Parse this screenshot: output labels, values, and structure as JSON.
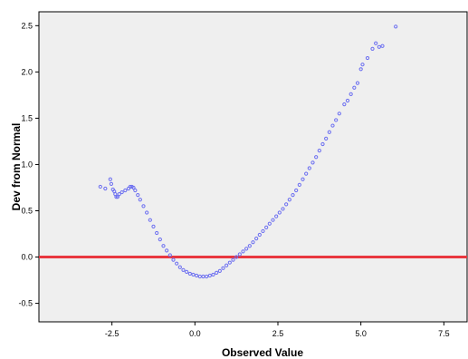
{
  "chart_data": {
    "type": "scatter",
    "title": "",
    "xlabel": "Observed Value",
    "ylabel": "Dev from Normal",
    "xlim": [
      -4.7,
      8.2
    ],
    "ylim": [
      -0.7,
      2.65
    ],
    "x_ticks": [
      "-2.5",
      "0.0",
      "2.5",
      "5.0",
      "7.5"
    ],
    "y_ticks": [
      "-0.5",
      "0.0",
      "0.5",
      "1.0",
      "1.5",
      "2.0",
      "2.5"
    ],
    "grid": false,
    "legend": "none",
    "reference_line": {
      "y": 0,
      "color": "#e8373f"
    },
    "point_color": "#6b6ef0",
    "plot_background": "#efefef",
    "series": [
      {
        "values": [
          [
            -2.85,
            0.76
          ],
          [
            -2.7,
            0.74
          ],
          [
            -2.55,
            0.84
          ],
          [
            -2.52,
            0.79
          ],
          [
            -2.47,
            0.73
          ],
          [
            -2.43,
            0.71
          ],
          [
            -2.4,
            0.68
          ],
          [
            -2.37,
            0.65
          ],
          [
            -2.33,
            0.65
          ],
          [
            -2.28,
            0.68
          ],
          [
            -2.2,
            0.7
          ],
          [
            -2.1,
            0.72
          ],
          [
            -2.0,
            0.74
          ],
          [
            -1.95,
            0.76
          ],
          [
            -1.9,
            0.76
          ],
          [
            -1.85,
            0.75
          ],
          [
            -1.8,
            0.72
          ],
          [
            -1.72,
            0.67
          ],
          [
            -1.65,
            0.62
          ],
          [
            -1.55,
            0.55
          ],
          [
            -1.45,
            0.48
          ],
          [
            -1.35,
            0.4
          ],
          [
            -1.25,
            0.33
          ],
          [
            -1.15,
            0.26
          ],
          [
            -1.05,
            0.19
          ],
          [
            -0.95,
            0.12
          ],
          [
            -0.85,
            0.07
          ],
          [
            -0.75,
            0.02
          ],
          [
            -0.65,
            -0.03
          ],
          [
            -0.55,
            -0.07
          ],
          [
            -0.45,
            -0.11
          ],
          [
            -0.35,
            -0.14
          ],
          [
            -0.25,
            -0.16
          ],
          [
            -0.15,
            -0.18
          ],
          [
            -0.05,
            -0.19
          ],
          [
            0.05,
            -0.2
          ],
          [
            0.15,
            -0.21
          ],
          [
            0.25,
            -0.21
          ],
          [
            0.35,
            -0.21
          ],
          [
            0.45,
            -0.2
          ],
          [
            0.55,
            -0.19
          ],
          [
            0.65,
            -0.17
          ],
          [
            0.75,
            -0.15
          ],
          [
            0.85,
            -0.12
          ],
          [
            0.95,
            -0.09
          ],
          [
            1.05,
            -0.06
          ],
          [
            1.15,
            -0.03
          ],
          [
            1.25,
            0.0
          ],
          [
            1.35,
            0.03
          ],
          [
            1.45,
            0.06
          ],
          [
            1.55,
            0.09
          ],
          [
            1.65,
            0.12
          ],
          [
            1.75,
            0.16
          ],
          [
            1.85,
            0.2
          ],
          [
            1.95,
            0.24
          ],
          [
            2.05,
            0.28
          ],
          [
            2.15,
            0.32
          ],
          [
            2.25,
            0.36
          ],
          [
            2.35,
            0.4
          ],
          [
            2.45,
            0.44
          ],
          [
            2.55,
            0.48
          ],
          [
            2.65,
            0.52
          ],
          [
            2.75,
            0.57
          ],
          [
            2.85,
            0.62
          ],
          [
            2.95,
            0.67
          ],
          [
            3.05,
            0.72
          ],
          [
            3.15,
            0.78
          ],
          [
            3.25,
            0.84
          ],
          [
            3.35,
            0.9
          ],
          [
            3.45,
            0.96
          ],
          [
            3.55,
            1.02
          ],
          [
            3.65,
            1.08
          ],
          [
            3.75,
            1.15
          ],
          [
            3.85,
            1.22
          ],
          [
            3.95,
            1.28
          ],
          [
            4.05,
            1.35
          ],
          [
            4.15,
            1.42
          ],
          [
            4.25,
            1.48
          ],
          [
            4.35,
            1.55
          ],
          [
            4.5,
            1.65
          ],
          [
            4.6,
            1.69
          ],
          [
            4.7,
            1.76
          ],
          [
            4.8,
            1.83
          ],
          [
            4.9,
            1.88
          ],
          [
            5.0,
            2.03
          ],
          [
            5.05,
            2.08
          ],
          [
            5.2,
            2.15
          ],
          [
            5.35,
            2.25
          ],
          [
            5.45,
            2.31
          ],
          [
            5.55,
            2.27
          ],
          [
            5.65,
            2.28
          ],
          [
            6.05,
            2.49
          ]
        ]
      }
    ]
  }
}
